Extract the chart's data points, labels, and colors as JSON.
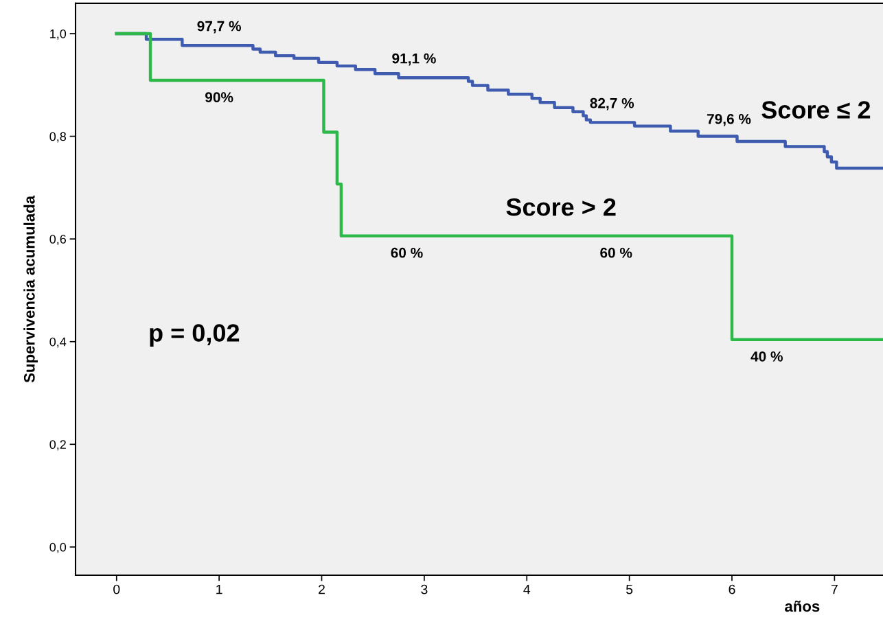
{
  "chart_data": {
    "type": "step",
    "ylabel": "Supervivencia acumulada",
    "xlabel": "años",
    "xlim": [
      -0.4,
      7.49
    ],
    "xticks": [
      0,
      1,
      2,
      3,
      4,
      5,
      6,
      7
    ],
    "ylim": [
      -0.055,
      1.059
    ],
    "yticks": [
      {
        "value": 0,
        "label": "0,0"
      },
      {
        "value": 0.2,
        "label": "0,2"
      },
      {
        "value": 0.4,
        "label": "0,4"
      },
      {
        "value": 0.6,
        "label": "0,6"
      },
      {
        "value": 0.8,
        "label": "0,8"
      },
      {
        "value": 1.0,
        "label": "1,0"
      }
    ],
    "grid": false,
    "legend": false,
    "series": [
      {
        "name": "Score ≤ 2",
        "color": "#3f5bb0",
        "x": [
          0,
          0.29,
          0.64,
          1.33,
          1.4,
          1.55,
          1.73,
          1.97,
          2.15,
          2.33,
          2.52,
          2.75,
          3.43,
          3.47,
          3.62,
          3.82,
          4.05,
          4.13,
          4.27,
          4.45,
          4.55,
          4.58,
          4.62,
          5.05,
          5.4,
          5.67,
          6.05,
          6.52,
          6.9,
          6.93,
          6.97,
          7.02,
          7.49
        ],
        "values": [
          1.0,
          0.989,
          0.977,
          0.97,
          0.964,
          0.957,
          0.952,
          0.944,
          0.937,
          0.93,
          0.922,
          0.914,
          0.907,
          0.899,
          0.89,
          0.882,
          0.874,
          0.866,
          0.856,
          0.848,
          0.84,
          0.832,
          0.827,
          0.82,
          0.81,
          0.8,
          0.79,
          0.78,
          0.77,
          0.76,
          0.75,
          0.738,
          0.738
        ]
      },
      {
        "name": "Score > 2",
        "color": "#2db84a",
        "x": [
          0,
          0.33,
          2.02,
          2.15,
          2.19,
          6.0,
          7.49
        ],
        "values": [
          1.0,
          0.909,
          0.808,
          0.707,
          0.606,
          0.404,
          0.404
        ]
      }
    ],
    "annotations": [
      {
        "text": "97,7 %",
        "x": 1.0,
        "y": 0.977
      },
      {
        "text": "90%",
        "x": 1.0,
        "y": 0.909
      },
      {
        "text": "91,1 %",
        "x": 2.9,
        "y": 0.914
      },
      {
        "text": "82,7 %",
        "x": 4.83,
        "y": 0.827
      },
      {
        "text": "79,6 %",
        "x": 5.97,
        "y": 0.796
      },
      {
        "text": "60 %",
        "x": 2.83,
        "y": 0.606
      },
      {
        "text": "60 %",
        "x": 4.87,
        "y": 0.606
      },
      {
        "text": "40 %",
        "x": 6.34,
        "y": 0.404
      },
      "p = 0,02"
    ]
  }
}
